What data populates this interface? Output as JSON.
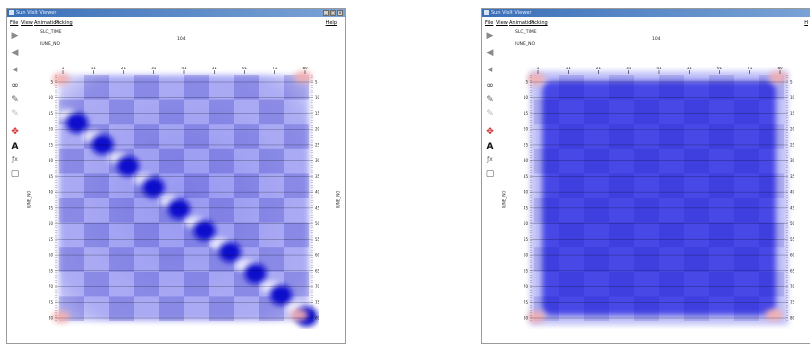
{
  "windows": [
    {
      "id": "left",
      "title": "Sun VisIt Viewer",
      "menu": [
        "File",
        "View",
        "Animation",
        "Picking"
      ],
      "help": "Help",
      "var_caption": "SLC_TIME",
      "axis_caption": "IUNE_NO",
      "time_value": "104",
      "y_axis_label": "IUNE_NO",
      "pattern": "diagonal"
    },
    {
      "id": "right",
      "title": "Sun VisIt Viewer",
      "menu": [
        "File",
        "View",
        "Animation",
        "Picking"
      ],
      "help": "H",
      "var_caption": "SLC_TIME",
      "axis_caption": "IUNE_NO",
      "time_value": "104",
      "y_axis_label": "IUNE_NO",
      "pattern": "uniform"
    }
  ],
  "toolbar_icons": [
    "play-icon",
    "step-back-icon",
    "rewind-icon",
    "binoculars-icon",
    "pen-icon",
    "pen-disabled-icon",
    "move-arrows-icon",
    "text-tool-icon",
    "formula-icon",
    "page-icon"
  ],
  "x_ticks": [
    "1",
    "11",
    "21",
    "31",
    "41",
    "51",
    "61",
    "71",
    "80"
  ],
  "y_ticks": [
    "5",
    "10",
    "15",
    "20",
    "25",
    "30",
    "35",
    "40",
    "45",
    "50",
    "55",
    "60",
    "65",
    "70",
    "75",
    "80"
  ],
  "colors": {
    "field": "#3a3ae6",
    "peak": "#0a0acc",
    "warm": "#f4b0b0",
    "titlebar": "#3a6fb8"
  }
}
